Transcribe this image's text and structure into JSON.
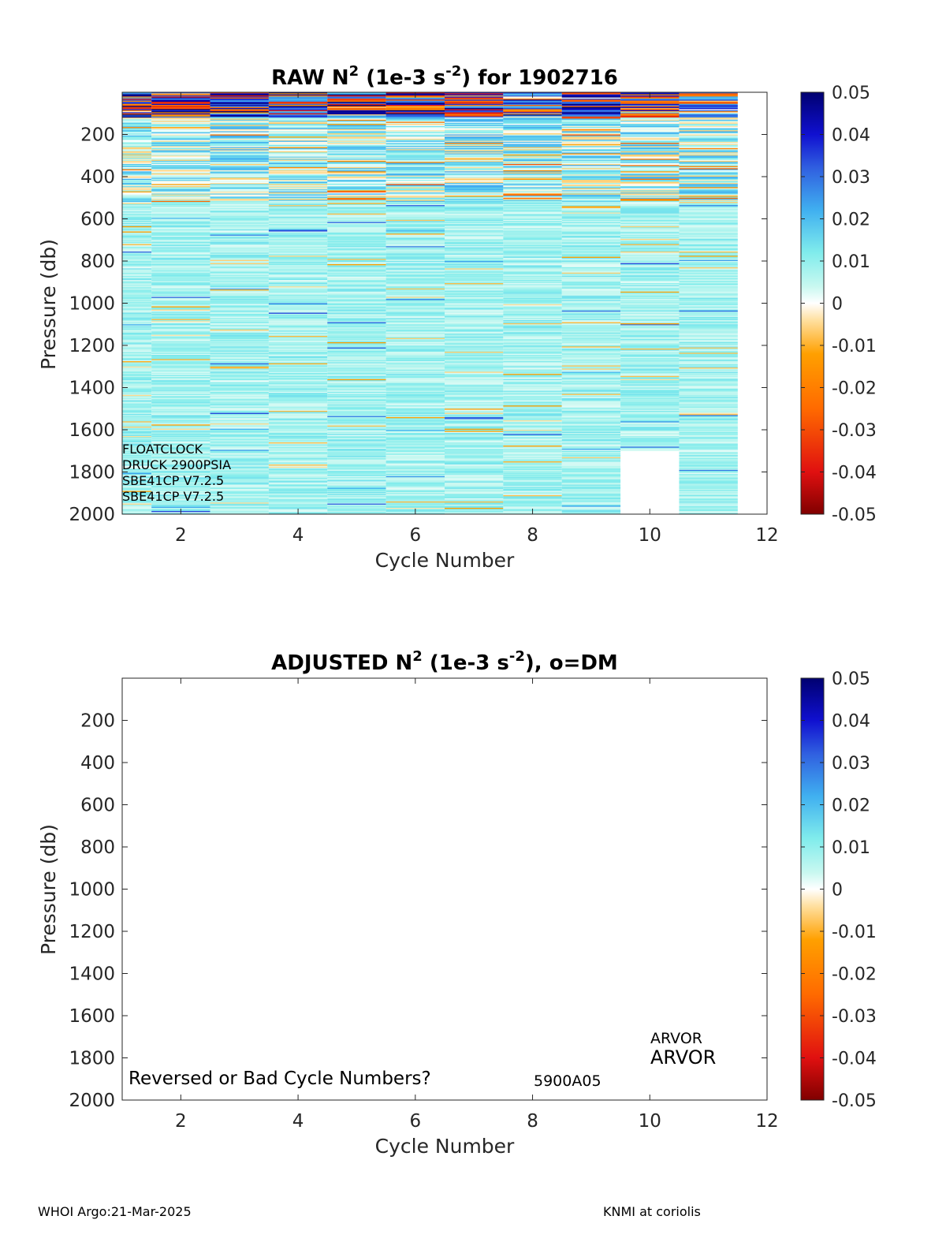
{
  "chart_data": [
    {
      "type": "heatmap",
      "title": "RAW N² (1e-3 s⁻²) for 1902716",
      "title_parts": {
        "pre": "RAW N",
        "sup1": "2",
        "mid": " (1e-3 s",
        "sup2": "-2",
        "post": ") for 1902716"
      },
      "xlabel": "Cycle Number",
      "ylabel": "Pressure (db)",
      "xlim": [
        1,
        12
      ],
      "ylim": [
        0,
        2000
      ],
      "y_reversed": true,
      "x_ticks": [
        2,
        4,
        6,
        8,
        10,
        12
      ],
      "y_ticks": [
        200,
        400,
        600,
        800,
        1000,
        1200,
        1400,
        1600,
        1800,
        2000
      ],
      "colorbar": {
        "range": [
          -0.05,
          0.05
        ],
        "ticks": [
          "0.05",
          "0.04",
          "0.03",
          "0.02",
          "0.01",
          "0",
          "-0.01",
          "-0.02",
          "-0.03",
          "-0.04",
          "-0.05"
        ]
      },
      "cycles": [
        1,
        2,
        3,
        4,
        5,
        6,
        7,
        8,
        9,
        10,
        11
      ],
      "max_pressure_by_cycle": [
        2000,
        2000,
        2000,
        2000,
        2000,
        2000,
        2000,
        2000,
        2000,
        1700,
        2000
      ],
      "typical_value": 0.008,
      "annotations": [
        "FLOATCLOCK",
        "DRUCK 2900PSIA",
        "SBE41CP V7.2.5",
        "SBE41CP V7.2.5"
      ]
    },
    {
      "type": "heatmap",
      "title": "ADJUSTED N² (1e-3 s⁻²), o=DM",
      "title_parts": {
        "pre": "ADJUSTED N",
        "sup1": "2",
        "mid": " (1e-3 s",
        "sup2": "-2",
        "post": "), o=DM"
      },
      "xlabel": "Cycle Number",
      "ylabel": "Pressure (db)",
      "xlim": [
        1,
        12
      ],
      "ylim": [
        0,
        2000
      ],
      "y_reversed": true,
      "x_ticks": [
        2,
        4,
        6,
        8,
        10,
        12
      ],
      "y_ticks": [
        200,
        400,
        600,
        800,
        1000,
        1200,
        1400,
        1600,
        1800,
        2000
      ],
      "colorbar": {
        "range": [
          -0.05,
          0.05
        ],
        "ticks": [
          "0.05",
          "0.04",
          "0.03",
          "0.02",
          "0.01",
          "0",
          "-0.01",
          "-0.02",
          "-0.03",
          "-0.04",
          "-0.05"
        ]
      },
      "values": [],
      "annotations": [
        "Reversed or Bad Cycle Numbers?",
        "5900A05",
        "ARVOR",
        "ARVOR"
      ]
    }
  ],
  "footer": {
    "left": "WHOI Argo:21-Mar-2025",
    "right": "KNMI at coriolis"
  }
}
